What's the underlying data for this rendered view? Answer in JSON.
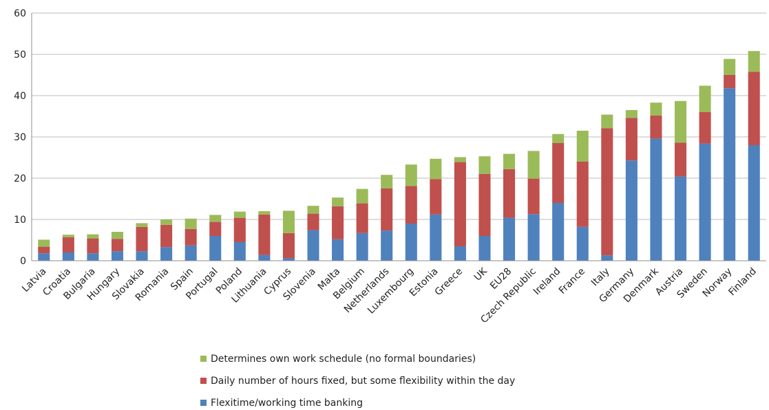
{
  "chart_data": {
    "type": "bar",
    "stacked": true,
    "categories": [
      "Latvia",
      "Croatia",
      "Bulgaria",
      "Hungary",
      "Slovakia",
      "Romania",
      "Spain",
      "Portugal",
      "Poland",
      "Lithuania",
      "Cyprus",
      "Slovenia",
      "Malta",
      "Belgium",
      "Netherlands",
      "Luxembourg",
      "Estonia",
      "Greece",
      "UK",
      "EU28",
      "Czech Republic",
      "Ireland",
      "France",
      "Italy",
      "Germany",
      "Denmark",
      "Austria",
      "Sweden",
      "Norway",
      "Finland"
    ],
    "series": [
      {
        "name": "Flexitime/working time banking",
        "color": "#4f81bd",
        "values": [
          1.8,
          2.0,
          1.8,
          2.3,
          2.3,
          3.3,
          3.7,
          6.0,
          4.5,
          1.4,
          0.6,
          7.4,
          5.2,
          6.7,
          7.3,
          9.0,
          11.2,
          3.5,
          6.0,
          10.4,
          11.3,
          14.0,
          8.2,
          1.3,
          24.3,
          29.6,
          20.4,
          28.4,
          41.8,
          28.0
        ]
      },
      {
        "name": "Daily number of hours fixed, but some flexibility within the day",
        "color": "#c0504d",
        "values": [
          1.6,
          3.7,
          3.6,
          3.0,
          5.9,
          5.4,
          4.0,
          3.4,
          5.9,
          9.8,
          6.1,
          4.0,
          8.0,
          7.2,
          10.2,
          9.1,
          8.6,
          20.4,
          15.0,
          11.8,
          8.6,
          14.5,
          15.8,
          30.8,
          10.3,
          5.6,
          8.2,
          7.6,
          3.2,
          17.8
        ]
      },
      {
        "name": "Determines own work schedule (no formal boundaries)",
        "color": "#9bbb59",
        "values": [
          1.7,
          0.6,
          1.0,
          1.7,
          0.9,
          1.3,
          2.5,
          1.7,
          1.5,
          0.8,
          5.4,
          1.9,
          2.1,
          3.5,
          3.3,
          5.2,
          4.9,
          1.2,
          4.3,
          3.7,
          6.7,
          2.2,
          7.5,
          3.3,
          1.9,
          3.1,
          10.1,
          6.4,
          3.9,
          5.0
        ]
      }
    ],
    "yticks": [
      0,
      10,
      20,
      30,
      40,
      50,
      60
    ],
    "ylim": [
      0,
      60
    ],
    "grid": true,
    "legend_position": "bottom-center",
    "legend_order": [
      "Determines own work schedule (no formal boundaries)",
      "Daily number of hours fixed, but some flexibility within the day",
      "Flexitime/working time banking"
    ],
    "title": "",
    "xlabel": "",
    "ylabel": ""
  }
}
